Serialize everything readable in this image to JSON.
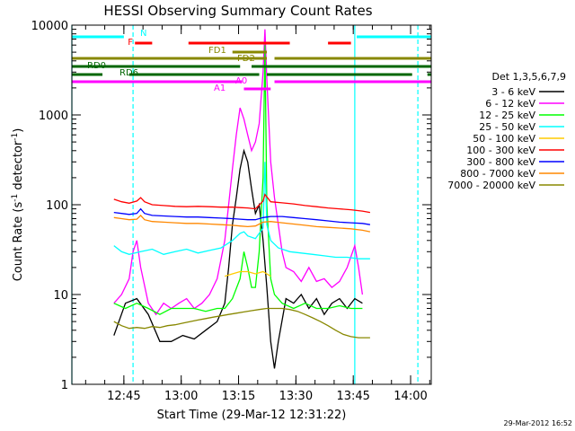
{
  "chart_data": {
    "type": "line",
    "title": "HESSI Observing Summary Count Rates",
    "xlabel": "Start Time (29-Mar-12 12:31:22)",
    "ylabel_main": "Count Rate (s",
    "ylabel_sup1": "-1",
    "ylabel_mid": " detector",
    "ylabel_sup2": "-1",
    "ylabel_end": ")",
    "yscale": "log",
    "ylim": [
      1,
      10000
    ],
    "xlim_minutes": [
      0,
      94
    ],
    "x_unit_note": "minutes after 12:31:22",
    "x_ticks": [
      {
        "label": "12:45",
        "t": 13.6
      },
      {
        "label": "13:00",
        "t": 28.6
      },
      {
        "label": "13:15",
        "t": 43.6
      },
      {
        "label": "13:30",
        "t": 58.6
      },
      {
        "label": "13:45",
        "t": 73.6
      },
      {
        "label": "14:00",
        "t": 88.6
      }
    ],
    "y_ticks": [
      {
        "label": "1",
        "v": 1
      },
      {
        "label": "10",
        "v": 10
      },
      {
        "label": "100",
        "v": 100
      },
      {
        "label": "1000",
        "v": 1000
      },
      {
        "label": "10000",
        "v": 10000
      }
    ],
    "legend_title": "Det 1,3,5,6,7,9",
    "legend_placement": "right",
    "series": [
      {
        "name": "3 - 6 keV",
        "color": "#000000",
        "points": [
          [
            11,
            3.5
          ],
          [
            14,
            8
          ],
          [
            17,
            9
          ],
          [
            20,
            6
          ],
          [
            23,
            3
          ],
          [
            26,
            3
          ],
          [
            29,
            3.5
          ],
          [
            32,
            3.2
          ],
          [
            35,
            4
          ],
          [
            38,
            5
          ],
          [
            40,
            8
          ],
          [
            41,
            20
          ],
          [
            42,
            60
          ],
          [
            43,
            120
          ],
          [
            44,
            250
          ],
          [
            45,
            400
          ],
          [
            46,
            300
          ],
          [
            47,
            150
          ],
          [
            48,
            80
          ],
          [
            49,
            100
          ],
          [
            50,
            40
          ],
          [
            51,
            12
          ],
          [
            52,
            3
          ],
          [
            53,
            1.5
          ],
          [
            54,
            3
          ],
          [
            56,
            9
          ],
          [
            58,
            8
          ],
          [
            60,
            10
          ],
          [
            62,
            7
          ],
          [
            64,
            9
          ],
          [
            66,
            6
          ],
          [
            68,
            8
          ],
          [
            70,
            9
          ],
          [
            72,
            7
          ],
          [
            74,
            9
          ],
          [
            76,
            8
          ]
        ]
      },
      {
        "name": "6 - 12 keV",
        "color": "#ff00ff",
        "points": [
          [
            11,
            8
          ],
          [
            13,
            10
          ],
          [
            15,
            15
          ],
          [
            16,
            30
          ],
          [
            17,
            40
          ],
          [
            18,
            20
          ],
          [
            20,
            8
          ],
          [
            22,
            6
          ],
          [
            24,
            8
          ],
          [
            26,
            7
          ],
          [
            28,
            8
          ],
          [
            30,
            9
          ],
          [
            32,
            7
          ],
          [
            34,
            8
          ],
          [
            36,
            10
          ],
          [
            38,
            15
          ],
          [
            40,
            40
          ],
          [
            41,
            100
          ],
          [
            42,
            250
          ],
          [
            43,
            600
          ],
          [
            44,
            1200
          ],
          [
            45,
            900
          ],
          [
            46,
            600
          ],
          [
            47,
            400
          ],
          [
            48,
            500
          ],
          [
            49,
            800
          ],
          [
            50,
            3000
          ],
          [
            50.5,
            9000
          ],
          [
            51,
            2500
          ],
          [
            52,
            300
          ],
          [
            53,
            120
          ],
          [
            54,
            60
          ],
          [
            55,
            30
          ],
          [
            56,
            20
          ],
          [
            58,
            18
          ],
          [
            60,
            14
          ],
          [
            62,
            20
          ],
          [
            64,
            14
          ],
          [
            66,
            15
          ],
          [
            68,
            12
          ],
          [
            70,
            14
          ],
          [
            72,
            20
          ],
          [
            74,
            35
          ],
          [
            75,
            20
          ],
          [
            76,
            10
          ]
        ]
      },
      {
        "name": "12 - 25 keV",
        "color": "#00ff00",
        "points": [
          [
            11,
            8
          ],
          [
            14,
            7
          ],
          [
            17,
            8
          ],
          [
            20,
            7
          ],
          [
            23,
            6
          ],
          [
            26,
            7
          ],
          [
            29,
            7
          ],
          [
            32,
            7
          ],
          [
            35,
            6.5
          ],
          [
            38,
            7
          ],
          [
            40,
            7
          ],
          [
            42,
            9
          ],
          [
            44,
            15
          ],
          [
            45,
            30
          ],
          [
            46,
            20
          ],
          [
            47,
            12
          ],
          [
            48,
            12
          ],
          [
            49,
            30
          ],
          [
            50,
            200
          ],
          [
            50.5,
            6000
          ],
          [
            51,
            100
          ],
          [
            52,
            15
          ],
          [
            53,
            10
          ],
          [
            55,
            8
          ],
          [
            58,
            7
          ],
          [
            61,
            8
          ],
          [
            64,
            7
          ],
          [
            67,
            7
          ],
          [
            70,
            7.5
          ],
          [
            73,
            7
          ],
          [
            76,
            7
          ]
        ]
      },
      {
        "name": "25 - 50 keV",
        "color": "#00ffff",
        "points": [
          [
            11,
            35
          ],
          [
            13,
            30
          ],
          [
            15,
            28
          ],
          [
            18,
            30
          ],
          [
            21,
            32
          ],
          [
            24,
            28
          ],
          [
            27,
            30
          ],
          [
            30,
            32
          ],
          [
            33,
            29
          ],
          [
            36,
            31
          ],
          [
            39,
            33
          ],
          [
            42,
            40
          ],
          [
            44,
            48
          ],
          [
            45,
            50
          ],
          [
            46,
            45
          ],
          [
            48,
            42
          ],
          [
            49,
            48
          ],
          [
            50,
            55
          ],
          [
            50.5,
            300
          ],
          [
            51,
            60
          ],
          [
            52,
            40
          ],
          [
            54,
            33
          ],
          [
            57,
            30
          ],
          [
            60,
            29
          ],
          [
            63,
            28
          ],
          [
            66,
            27
          ],
          [
            69,
            26
          ],
          [
            72,
            26
          ],
          [
            75,
            25
          ],
          [
            78,
            25
          ]
        ]
      },
      {
        "name": "50 - 100 keV",
        "color": "#ffcc00",
        "points": [
          [
            40,
            16
          ],
          [
            42,
            17
          ],
          [
            44,
            18
          ],
          [
            46,
            18
          ],
          [
            48,
            17
          ],
          [
            50,
            18
          ],
          [
            51,
            17
          ],
          [
            52,
            16
          ]
        ]
      },
      {
        "name": "100 - 300 keV",
        "color": "#ff0000",
        "points": [
          [
            11,
            115
          ],
          [
            13,
            108
          ],
          [
            15,
            104
          ],
          [
            17,
            110
          ],
          [
            18,
            120
          ],
          [
            19,
            108
          ],
          [
            21,
            100
          ],
          [
            24,
            98
          ],
          [
            27,
            96
          ],
          [
            30,
            95
          ],
          [
            33,
            96
          ],
          [
            36,
            95
          ],
          [
            39,
            94
          ],
          [
            42,
            94
          ],
          [
            44,
            93
          ],
          [
            46,
            92
          ],
          [
            48,
            90
          ],
          [
            50,
            110
          ],
          [
            50.5,
            130
          ],
          [
            52,
            108
          ],
          [
            55,
            105
          ],
          [
            58,
            102
          ],
          [
            61,
            98
          ],
          [
            64,
            95
          ],
          [
            67,
            92
          ],
          [
            70,
            90
          ],
          [
            73,
            88
          ],
          [
            76,
            85
          ],
          [
            78,
            82
          ]
        ]
      },
      {
        "name": "300 - 800 keV",
        "color": "#0000ff",
        "points": [
          [
            11,
            82
          ],
          [
            13,
            80
          ],
          [
            15,
            78
          ],
          [
            17,
            80
          ],
          [
            18,
            90
          ],
          [
            19,
            80
          ],
          [
            21,
            76
          ],
          [
            24,
            75
          ],
          [
            27,
            74
          ],
          [
            30,
            73
          ],
          [
            33,
            73
          ],
          [
            36,
            72
          ],
          [
            39,
            71
          ],
          [
            42,
            70
          ],
          [
            44,
            69
          ],
          [
            46,
            68
          ],
          [
            48,
            68
          ],
          [
            50,
            72
          ],
          [
            52,
            74
          ],
          [
            55,
            74
          ],
          [
            58,
            72
          ],
          [
            61,
            70
          ],
          [
            64,
            68
          ],
          [
            67,
            66
          ],
          [
            70,
            64
          ],
          [
            73,
            63
          ],
          [
            76,
            62
          ],
          [
            78,
            60
          ]
        ]
      },
      {
        "name": "800 - 7000 keV",
        "color": "#ff8800",
        "points": [
          [
            11,
            72
          ],
          [
            13,
            70
          ],
          [
            15,
            68
          ],
          [
            17,
            69
          ],
          [
            18,
            76
          ],
          [
            19,
            68
          ],
          [
            21,
            65
          ],
          [
            24,
            64
          ],
          [
            27,
            63
          ],
          [
            30,
            62
          ],
          [
            33,
            62
          ],
          [
            36,
            61
          ],
          [
            39,
            60
          ],
          [
            42,
            59
          ],
          [
            44,
            58
          ],
          [
            46,
            57
          ],
          [
            48,
            58
          ],
          [
            50,
            64
          ],
          [
            52,
            65
          ],
          [
            55,
            63
          ],
          [
            58,
            61
          ],
          [
            61,
            59
          ],
          [
            64,
            57
          ],
          [
            67,
            56
          ],
          [
            70,
            55
          ],
          [
            73,
            54
          ],
          [
            76,
            52
          ],
          [
            78,
            50
          ]
        ]
      },
      {
        "name": "7000 - 20000 keV",
        "color": "#888800",
        "points": [
          [
            11,
            5
          ],
          [
            13,
            4.5
          ],
          [
            15,
            4.2
          ],
          [
            17,
            4.3
          ],
          [
            19,
            4.2
          ],
          [
            21,
            4.4
          ],
          [
            23,
            4.3
          ],
          [
            25,
            4.5
          ],
          [
            27,
            4.6
          ],
          [
            29,
            4.8
          ],
          [
            31,
            5
          ],
          [
            33,
            5.2
          ],
          [
            35,
            5.4
          ],
          [
            37,
            5.6
          ],
          [
            39,
            5.8
          ],
          [
            41,
            6
          ],
          [
            43,
            6.2
          ],
          [
            45,
            6.4
          ],
          [
            47,
            6.6
          ],
          [
            49,
            6.8
          ],
          [
            51,
            7
          ],
          [
            53,
            7
          ],
          [
            55,
            7
          ],
          [
            57,
            6.8
          ],
          [
            59,
            6.5
          ],
          [
            61,
            6
          ],
          [
            63,
            5.5
          ],
          [
            65,
            5
          ],
          [
            67,
            4.5
          ],
          [
            69,
            4
          ],
          [
            71,
            3.6
          ],
          [
            73,
            3.4
          ],
          [
            75,
            3.3
          ],
          [
            78,
            3.3
          ]
        ]
      }
    ],
    "state_bars": [
      {
        "name": "N",
        "color": "#00ffff",
        "segments": [
          [
            0,
            13.6
          ],
          [
            74.5,
            94
          ]
        ]
      },
      {
        "name": "F",
        "color": "#ff0000",
        "segments": [
          [
            16.5,
            21
          ],
          [
            30.5,
            57
          ],
          [
            67,
            73
          ]
        ]
      },
      {
        "name": "FD1",
        "color": "#888800",
        "segments": [
          [
            42,
            51
          ]
        ]
      },
      {
        "name": "FD2",
        "color": "#888800",
        "segments": [
          [
            0,
            51
          ],
          [
            53,
            94
          ]
        ]
      },
      {
        "name": "RD0",
        "color": "#006600",
        "segments": [
          [
            0,
            44
          ],
          [
            47,
            94
          ]
        ]
      },
      {
        "name": "RD6",
        "color": "#006600",
        "segments": [
          [
            0,
            8
          ],
          [
            15,
            49
          ],
          [
            51,
            89
          ],
          [
            93,
            94
          ]
        ]
      },
      {
        "name": "A0",
        "color": "#ff00ff",
        "segments": [
          [
            0,
            44.5
          ],
          [
            53,
            94
          ]
        ]
      },
      {
        "name": "A1",
        "color": "#ff00ff",
        "segments": [
          [
            45,
            52
          ]
        ]
      }
    ],
    "state_labels": [
      "N",
      "F",
      "FD1",
      "FD2",
      "RD0",
      "RD6",
      "A0",
      "A1"
    ],
    "saa_lines": [
      {
        "t": 0,
        "style": "solid"
      },
      {
        "t": 16,
        "style": "dashed"
      },
      {
        "t": 74,
        "style": "solid"
      },
      {
        "t": 90.5,
        "style": "dashed"
      }
    ]
  },
  "footer": {
    "timestamp": "29-Mar-2012 16:52"
  }
}
